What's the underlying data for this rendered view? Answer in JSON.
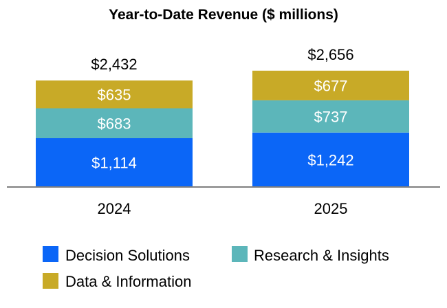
{
  "chart_data": {
    "type": "bar",
    "stacked": true,
    "title": "Year-to-Date Revenue ($ millions)",
    "xlabel": "",
    "ylabel": "",
    "categories": [
      "2024",
      "2025"
    ],
    "category_labels": [
      "2024",
      "2025"
    ],
    "totals": [
      2432,
      2656
    ],
    "total_labels": [
      "$2,432",
      "$2,656"
    ],
    "series": [
      {
        "name": "Decision Solutions",
        "color": "#0B66F7",
        "values": [
          1114,
          1242
        ],
        "labels": [
          "$1,114",
          "$1,242"
        ]
      },
      {
        "name": "Research & Insights",
        "color": "#5CB6BA",
        "values": [
          683,
          737
        ],
        "labels": [
          "$683",
          "$737"
        ]
      },
      {
        "name": "Data & Information",
        "color": "#C8AA27",
        "values": [
          635,
          677
        ],
        "labels": [
          "$635",
          "$677"
        ]
      }
    ],
    "grid": false,
    "legend_position": "bottom",
    "axis_color": "#7F7F7F"
  }
}
